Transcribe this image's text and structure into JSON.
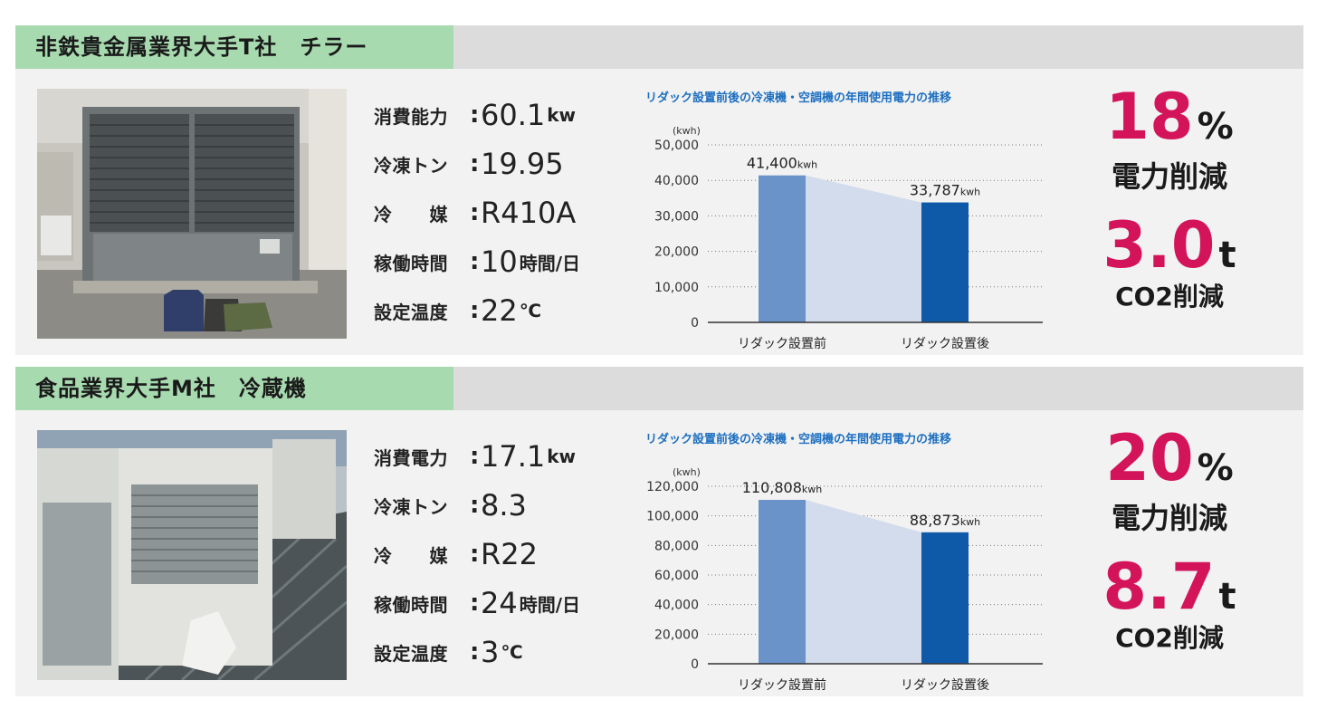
{
  "cases": [
    {
      "title": "非鉄貴金属業界大手T社　チラー",
      "specs": [
        {
          "label": "消費能力",
          "value": "60.1",
          "unit": "kw"
        },
        {
          "label": "冷凍トン",
          "value": "19.95",
          "unit": ""
        },
        {
          "label": "冷　　媒",
          "value": "R410A",
          "unit": ""
        },
        {
          "label": "稼働時間",
          "value": "10",
          "unit": "時間/日"
        },
        {
          "label": "設定温度",
          "value": "22",
          "unit": "℃"
        }
      ],
      "result": {
        "percent": "18",
        "percent_unit": "%",
        "percent_label": "電力削減",
        "co2_value": "3.0",
        "co2_unit": "t",
        "co2_label": "CO2削減"
      },
      "colors": {
        "before_bar": "#6a93c9",
        "after_bar": "#0f5aa8",
        "band": "#d3dcec",
        "accent": "#d4145a"
      }
    },
    {
      "title": "食品業界大手M社　冷蔵機",
      "specs": [
        {
          "label": "消費電力",
          "value": "17.1",
          "unit": "kw"
        },
        {
          "label": "冷凍トン",
          "value": "8.3",
          "unit": ""
        },
        {
          "label": "冷　　媒",
          "value": "R22",
          "unit": ""
        },
        {
          "label": "稼働時間",
          "value": "24",
          "unit": "時間/日"
        },
        {
          "label": "設定温度",
          "value": "3",
          "unit": "℃"
        }
      ],
      "result": {
        "percent": "20",
        "percent_unit": "%",
        "percent_label": "電力削減",
        "co2_value": "8.7",
        "co2_unit": "t",
        "co2_label": "CO2削減"
      },
      "colors": {
        "before_bar": "#6a93c9",
        "after_bar": "#0f5aa8",
        "band": "#d3dcec",
        "accent": "#d4145a"
      }
    }
  ],
  "chart_data": [
    {
      "type": "bar",
      "title": "リダック設置前後の冷凍機・空調機の年間使用電力の推移",
      "ylabel": "(kwh)",
      "categories": [
        "リダック設置前",
        "リダック設置後"
      ],
      "values": [
        41400,
        33787
      ],
      "data_labels": [
        "41,400",
        "33,787"
      ],
      "data_label_unit": "kwh",
      "yticks": [
        0,
        10000,
        20000,
        30000,
        40000,
        50000
      ],
      "ytick_labels": [
        "0",
        "10,000",
        "20,000",
        "30,000",
        "40,000",
        "50,000"
      ],
      "ylim": [
        0,
        50000
      ],
      "grid": true
    },
    {
      "type": "bar",
      "title": "リダック設置前後の冷凍機・空調機の年間使用電力の推移",
      "ylabel": "(kwh)",
      "categories": [
        "リダック設置前",
        "リダック設置後"
      ],
      "values": [
        110808,
        88873
      ],
      "data_labels": [
        "110,808",
        "88,873"
      ],
      "data_label_unit": "kwh",
      "yticks": [
        0,
        20000,
        40000,
        60000,
        80000,
        100000,
        120000
      ],
      "ytick_labels": [
        "0",
        "20,000",
        "40,000",
        "60,000",
        "80,000",
        "100,000",
        "120,000"
      ],
      "ylim": [
        0,
        120000
      ],
      "grid": true
    }
  ]
}
